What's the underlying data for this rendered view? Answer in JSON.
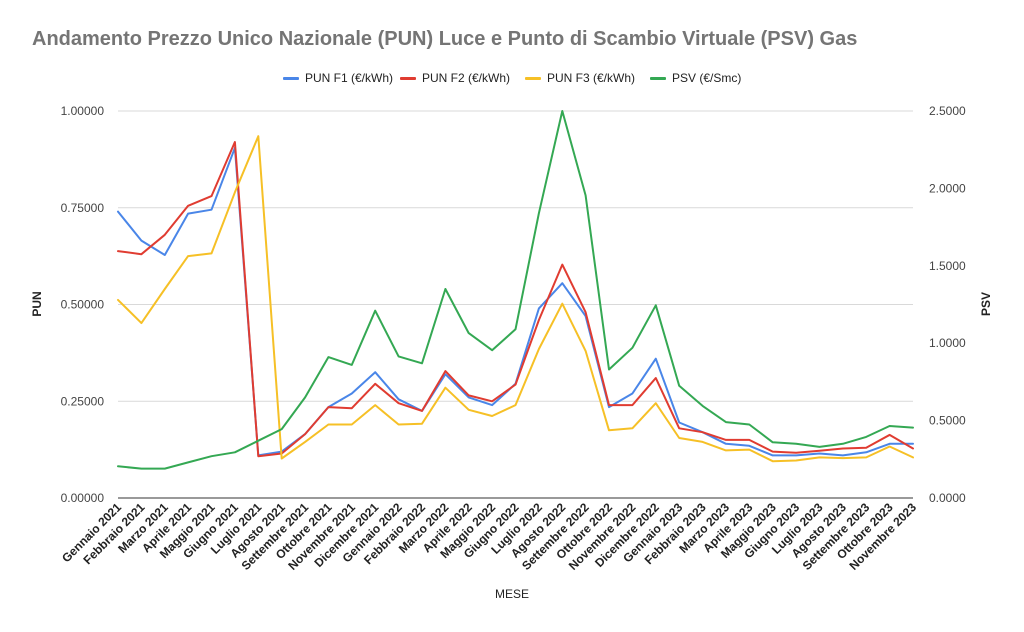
{
  "chart_data": {
    "type": "line",
    "title": "Andamento Prezzo Unico Nazionale (PUN) Luce e Punto di Scambio Virtuale (PSV) Gas",
    "xlabel": "MESE",
    "ylabel_left": "PUN",
    "ylabel_right": "PSV",
    "ylim_left": [
      0,
      1
    ],
    "ylim_right": [
      0,
      2.5
    ],
    "yticks_left": [
      "0.00000",
      "0.25000",
      "0.50000",
      "0.75000",
      "1.00000"
    ],
    "yticks_right": [
      "0.0000",
      "0.5000",
      "1.0000",
      "1.5000",
      "2.0000",
      "2.5000"
    ],
    "grid": true,
    "legend_position": "top",
    "categories": [
      "Gennaio 2021",
      "Febbraio 2021",
      "Marzo 2021",
      "Aprile 2021",
      "Maggio 2021",
      "Giugno 2021",
      "Luglio 2021",
      "Agosto 2021",
      "Settembre 2021",
      "Ottobre 2021",
      "Novembre 2021",
      "Dicembre 2021",
      "Gennaio 2022",
      "Febbraio 2022",
      "Marzo 2022",
      "Aprile 2022",
      "Maggio 2022",
      "Giugno 2022",
      "Luglio 2022",
      "Agosto 2022",
      "Settembre 2022",
      "Ottobre 2022",
      "Novembre 2022",
      "Dicembre 2022",
      "Gennaio 2023",
      "Febbraio 2023",
      "Marzo 2023",
      "Aprile 2023",
      "Maggio 2023",
      "Giugno 2023",
      "Luglio 2023",
      "Agosto 2023",
      "Settembre 2023",
      "Ottobre 2023",
      "Novembre 2023"
    ],
    "series": [
      {
        "name": "PUN F1 (€/kWh)",
        "axis": "left",
        "color": "#4a86e8",
        "values": [
          0.74,
          0.665,
          0.628,
          0.735,
          0.745,
          0.905,
          0.11,
          0.12,
          0.165,
          0.235,
          0.27,
          0.325,
          0.255,
          0.225,
          0.32,
          0.26,
          0.24,
          0.295,
          0.49,
          0.555,
          0.47,
          0.235,
          0.27,
          0.36,
          0.195,
          0.17,
          0.14,
          0.135,
          0.11,
          0.11,
          0.115,
          0.11,
          0.118,
          0.14,
          0.14
        ]
      },
      {
        "name": "PUN F2 (€/kWh)",
        "axis": "left",
        "color": "#e03c31",
        "values": [
          0.638,
          0.63,
          0.68,
          0.755,
          0.78,
          0.92,
          0.108,
          0.115,
          0.165,
          0.235,
          0.232,
          0.295,
          0.245,
          0.225,
          0.328,
          0.265,
          0.25,
          0.293,
          0.46,
          0.603,
          0.48,
          0.24,
          0.24,
          0.31,
          0.18,
          0.17,
          0.15,
          0.15,
          0.12,
          0.117,
          0.122,
          0.128,
          0.13,
          0.163,
          0.128
        ]
      },
      {
        "name": "PUN F3 (€/kWh)",
        "axis": "left",
        "color": "#f6c026",
        "values": [
          0.512,
          0.452,
          0.54,
          0.625,
          0.632,
          0.79,
          0.935,
          0.102,
          0.145,
          0.19,
          0.19,
          0.24,
          0.19,
          0.192,
          0.285,
          0.228,
          0.212,
          0.24,
          0.385,
          0.502,
          0.38,
          0.175,
          0.18,
          0.245,
          0.155,
          0.145,
          0.123,
          0.125,
          0.095,
          0.097,
          0.105,
          0.103,
          0.105,
          0.133,
          0.105
        ]
      },
      {
        "name": "PSV (€/Smc)",
        "axis": "right",
        "color": "#34a853",
        "values": [
          0.205,
          0.19,
          0.19,
          0.23,
          0.27,
          0.295,
          0.37,
          0.445,
          0.65,
          0.91,
          0.86,
          1.21,
          0.915,
          0.87,
          1.35,
          1.065,
          0.955,
          1.09,
          1.84,
          2.5,
          1.955,
          0.83,
          0.97,
          1.245,
          0.725,
          0.595,
          0.49,
          0.475,
          0.36,
          0.35,
          0.33,
          0.35,
          0.395,
          0.465,
          0.455
        ]
      }
    ]
  }
}
